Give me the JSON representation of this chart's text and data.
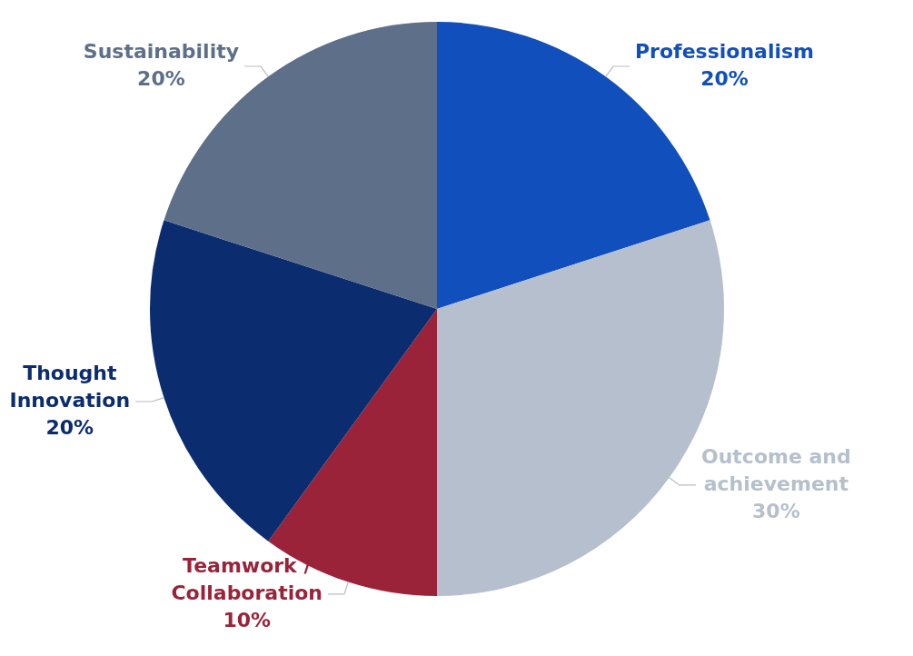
{
  "chart_data": {
    "type": "pie",
    "categories": [
      "Professionalism",
      "Outcome and achievement",
      "Teamwork / Collaboration",
      "Thought Innovation",
      "Sustainability"
    ],
    "values": [
      20,
      30,
      10,
      20,
      20
    ],
    "value_labels": [
      "20%",
      "30%",
      "10%",
      "20%",
      "20%"
    ],
    "colors": [
      "#114fbd",
      "#b5bfcd",
      "#9b2339",
      "#0b2c6e",
      "#5d6f89"
    ],
    "legend": false
  }
}
